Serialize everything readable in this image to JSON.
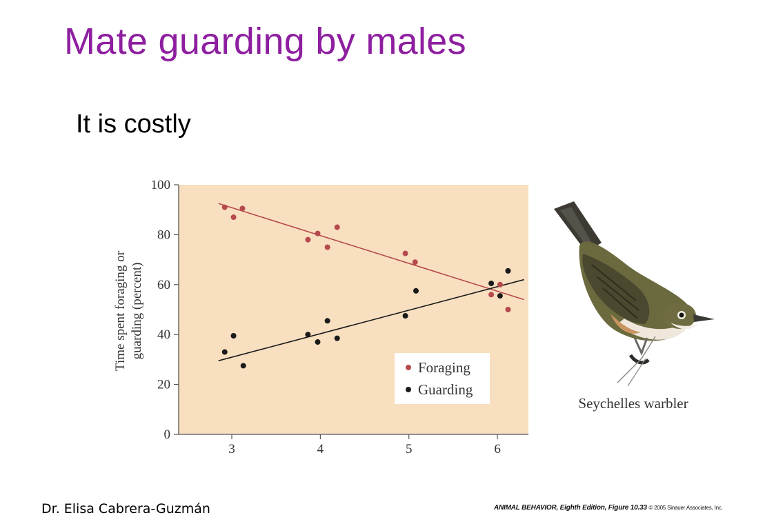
{
  "slide": {
    "title": "Mate guarding by males",
    "subtitle": "It is costly",
    "author": "Dr. Elisa Cabrera-Guzmán",
    "credit_main": "ANIMAL BEHAVIOR, Eighth Edition, Figure 10.33",
    "credit_copy": "© 2005 Sinauer Associates, Inc."
  },
  "figure": {
    "bird_caption": "Seychelles warbler",
    "bird_icon": "seychelles-warbler-illustration"
  },
  "colors": {
    "title": "#8e1ea0",
    "plot_background": "#f8dfc0",
    "foraging": "#b5494d",
    "guarding": "#1a1a1a"
  },
  "chart_data": {
    "type": "scatter",
    "title": "",
    "xlabel": "",
    "ylabel": "Time spent foraging or guarding (percent)",
    "ylabel_lines": [
      "Time spent foraging or",
      "guarding (percent)"
    ],
    "xlim": [
      2.4,
      6.35
    ],
    "ylim": [
      0,
      100
    ],
    "xticks": [
      3,
      4,
      5,
      6
    ],
    "yticks": [
      0,
      20,
      40,
      60,
      80,
      100
    ],
    "grid": false,
    "legend_position": "bottom-right",
    "series": [
      {
        "name": "Foraging",
        "color": "#b5494d",
        "points": [
          [
            2.92,
            91
          ],
          [
            3.02,
            87
          ],
          [
            3.12,
            90.5
          ],
          [
            3.86,
            78
          ],
          [
            3.97,
            80.5
          ],
          [
            4.08,
            75
          ],
          [
            4.19,
            83
          ],
          [
            4.96,
            72.5
          ],
          [
            5.07,
            69
          ],
          [
            5.93,
            56
          ],
          [
            6.03,
            60
          ],
          [
            6.12,
            50
          ]
        ],
        "trend": [
          [
            2.85,
            92.5
          ],
          [
            6.3,
            54
          ]
        ]
      },
      {
        "name": "Guarding",
        "color": "#1a1a1a",
        "points": [
          [
            2.92,
            33
          ],
          [
            3.02,
            39.5
          ],
          [
            3.13,
            27.5
          ],
          [
            3.86,
            40
          ],
          [
            3.97,
            37
          ],
          [
            4.08,
            45.5
          ],
          [
            4.19,
            38.5
          ],
          [
            4.96,
            47.5
          ],
          [
            5.08,
            57.5
          ],
          [
            5.93,
            60.5
          ],
          [
            6.03,
            55.5
          ],
          [
            6.12,
            65.5
          ]
        ],
        "trend": [
          [
            2.85,
            29.5
          ],
          [
            6.3,
            62
          ]
        ]
      }
    ]
  }
}
